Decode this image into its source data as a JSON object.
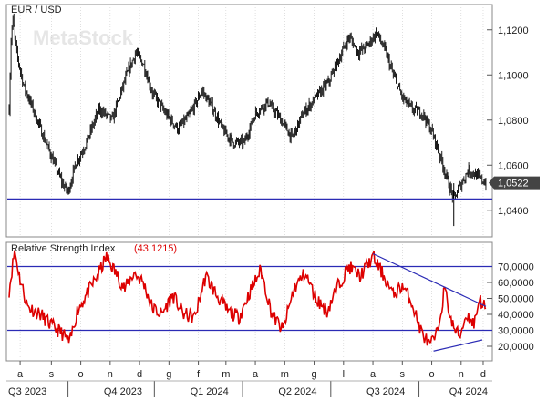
{
  "chart_data": [
    {
      "type": "candlestick",
      "title": "EUR / USD",
      "watermark": "MetaStock",
      "ylim": [
        1.029,
        1.13
      ],
      "yticks": [
        {
          "value": 1.12,
          "label": "1,1200"
        },
        {
          "value": 1.1,
          "label": "1,1000"
        },
        {
          "value": 1.08,
          "label": "1,0800"
        },
        {
          "value": 1.06,
          "label": "1,0600"
        },
        {
          "value": 1.04,
          "label": "1,0400"
        }
      ],
      "last_value": 1.0522,
      "last_value_label": "1,0522",
      "support_level": 1.045,
      "trend_anchors": [
        {
          "t": 0,
          "v": 1.085
        },
        {
          "t": 2,
          "v": 1.115
        },
        {
          "t": 4,
          "v": 1.125
        },
        {
          "t": 8,
          "v": 1.11
        },
        {
          "t": 16,
          "v": 1.095
        },
        {
          "t": 26,
          "v": 1.085
        },
        {
          "t": 38,
          "v": 1.072
        },
        {
          "t": 50,
          "v": 1.06
        },
        {
          "t": 58,
          "v": 1.052
        },
        {
          "t": 64,
          "v": 1.048
        },
        {
          "t": 72,
          "v": 1.06
        },
        {
          "t": 84,
          "v": 1.07
        },
        {
          "t": 98,
          "v": 1.085
        },
        {
          "t": 112,
          "v": 1.08
        },
        {
          "t": 120,
          "v": 1.09
        },
        {
          "t": 128,
          "v": 1.1
        },
        {
          "t": 138,
          "v": 1.11
        },
        {
          "t": 146,
          "v": 1.105
        },
        {
          "t": 156,
          "v": 1.092
        },
        {
          "t": 170,
          "v": 1.083
        },
        {
          "t": 184,
          "v": 1.076
        },
        {
          "t": 196,
          "v": 1.082
        },
        {
          "t": 210,
          "v": 1.093
        },
        {
          "t": 222,
          "v": 1.085
        },
        {
          "t": 232,
          "v": 1.076
        },
        {
          "t": 244,
          "v": 1.07
        },
        {
          "t": 256,
          "v": 1.07
        },
        {
          "t": 268,
          "v": 1.083
        },
        {
          "t": 282,
          "v": 1.088
        },
        {
          "t": 296,
          "v": 1.08
        },
        {
          "t": 308,
          "v": 1.072
        },
        {
          "t": 320,
          "v": 1.083
        },
        {
          "t": 334,
          "v": 1.09
        },
        {
          "t": 348,
          "v": 1.097
        },
        {
          "t": 360,
          "v": 1.108
        },
        {
          "t": 370,
          "v": 1.117
        },
        {
          "t": 380,
          "v": 1.11
        },
        {
          "t": 390,
          "v": 1.113
        },
        {
          "t": 400,
          "v": 1.119
        },
        {
          "t": 410,
          "v": 1.11
        },
        {
          "t": 418,
          "v": 1.1
        },
        {
          "t": 428,
          "v": 1.09
        },
        {
          "t": 438,
          "v": 1.085
        },
        {
          "t": 450,
          "v": 1.083
        },
        {
          "t": 460,
          "v": 1.075
        },
        {
          "t": 470,
          "v": 1.063
        },
        {
          "t": 478,
          "v": 1.052
        },
        {
          "t": 484,
          "v": 1.045
        },
        {
          "t": 490,
          "v": 1.05
        },
        {
          "t": 500,
          "v": 1.058
        },
        {
          "t": 510,
          "v": 1.055
        },
        {
          "t": 519,
          "v": 1.052
        }
      ]
    },
    {
      "type": "line",
      "title": "Relative Strength Index",
      "title_value": "(43,1215)",
      "ylim": [
        12000,
        84000
      ],
      "yticks": [
        {
          "value": 70000,
          "label": "70,0000"
        },
        {
          "value": 60000,
          "label": "60,0000"
        },
        {
          "value": 50000,
          "label": "50,0000"
        },
        {
          "value": 40000,
          "label": "40,0000"
        },
        {
          "value": 30000,
          "label": "30,0000"
        },
        {
          "value": 20000,
          "label": "20,0000"
        }
      ],
      "overbought": 70000,
      "oversold": 30000,
      "last_value": 43121.5,
      "x_months": [
        "a",
        "s",
        "o",
        "n",
        "d",
        "g",
        "f",
        "m",
        "a",
        "m",
        "g",
        "l",
        "a",
        "s",
        "o",
        "n",
        "d"
      ],
      "x_quarters": [
        "Q3 2023",
        "Q4 2023",
        "Q1 2024",
        "Q2 2024",
        "Q3 2024",
        "Q4 2024"
      ],
      "trend_down_label": "",
      "trend_up_label": "",
      "rsi_anchors": [
        {
          "t": 0,
          "v": 55000
        },
        {
          "t": 6,
          "v": 80000
        },
        {
          "t": 12,
          "v": 62000
        },
        {
          "t": 20,
          "v": 45000
        },
        {
          "t": 34,
          "v": 40000
        },
        {
          "t": 46,
          "v": 33000
        },
        {
          "t": 58,
          "v": 28000
        },
        {
          "t": 66,
          "v": 22000
        },
        {
          "t": 74,
          "v": 42000
        },
        {
          "t": 84,
          "v": 52000
        },
        {
          "t": 96,
          "v": 64000
        },
        {
          "t": 106,
          "v": 76000
        },
        {
          "t": 116,
          "v": 66000
        },
        {
          "t": 126,
          "v": 56000
        },
        {
          "t": 136,
          "v": 66000
        },
        {
          "t": 146,
          "v": 60000
        },
        {
          "t": 156,
          "v": 44000
        },
        {
          "t": 166,
          "v": 40000
        },
        {
          "t": 178,
          "v": 52000
        },
        {
          "t": 190,
          "v": 40000
        },
        {
          "t": 202,
          "v": 38000
        },
        {
          "t": 214,
          "v": 64000
        },
        {
          "t": 226,
          "v": 52000
        },
        {
          "t": 238,
          "v": 42000
        },
        {
          "t": 250,
          "v": 38000
        },
        {
          "t": 262,
          "v": 54000
        },
        {
          "t": 274,
          "v": 68000
        },
        {
          "t": 286,
          "v": 40000
        },
        {
          "t": 298,
          "v": 30000
        },
        {
          "t": 310,
          "v": 56000
        },
        {
          "t": 322,
          "v": 66000
        },
        {
          "t": 334,
          "v": 50000
        },
        {
          "t": 346,
          "v": 42000
        },
        {
          "t": 358,
          "v": 58000
        },
        {
          "t": 370,
          "v": 70000
        },
        {
          "t": 382,
          "v": 64000
        },
        {
          "t": 396,
          "v": 76000
        },
        {
          "t": 408,
          "v": 64000
        },
        {
          "t": 418,
          "v": 52000
        },
        {
          "t": 428,
          "v": 58000
        },
        {
          "t": 438,
          "v": 48000
        },
        {
          "t": 448,
          "v": 30000
        },
        {
          "t": 458,
          "v": 20000
        },
        {
          "t": 466,
          "v": 28000
        },
        {
          "t": 474,
          "v": 56000
        },
        {
          "t": 482,
          "v": 34000
        },
        {
          "t": 490,
          "v": 26000
        },
        {
          "t": 498,
          "v": 40000
        },
        {
          "t": 506,
          "v": 34000
        },
        {
          "t": 512,
          "v": 50000
        },
        {
          "t": 519,
          "v": 43121
        }
      ],
      "trend_down": [
        {
          "t": 396,
          "v": 78000
        },
        {
          "t": 519,
          "v": 45000
        }
      ],
      "trend_up": [
        {
          "t": 462,
          "v": 17000
        },
        {
          "t": 515,
          "v": 24000
        }
      ]
    }
  ],
  "colors": {
    "candle": "#000000",
    "rsi": "#dd0000",
    "level": "#2b2bb5",
    "badge": "#444444",
    "grid": "#cccccc"
  }
}
